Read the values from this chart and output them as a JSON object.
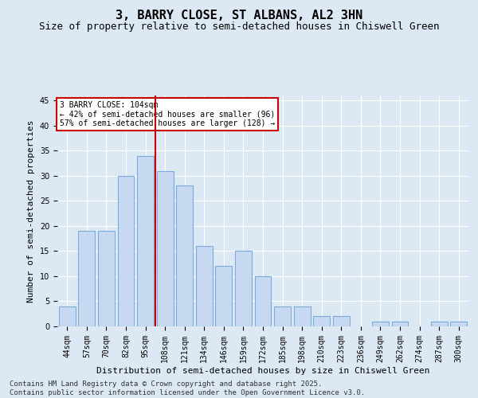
{
  "title": "3, BARRY CLOSE, ST ALBANS, AL2 3HN",
  "subtitle": "Size of property relative to semi-detached houses in Chiswell Green",
  "xlabel": "Distribution of semi-detached houses by size in Chiswell Green",
  "ylabel": "Number of semi-detached properties",
  "categories": [
    "44sqm",
    "57sqm",
    "70sqm",
    "82sqm",
    "95sqm",
    "108sqm",
    "121sqm",
    "134sqm",
    "146sqm",
    "159sqm",
    "172sqm",
    "185sqm",
    "198sqm",
    "210sqm",
    "223sqm",
    "236sqm",
    "249sqm",
    "262sqm",
    "274sqm",
    "287sqm",
    "300sqm"
  ],
  "values": [
    4,
    19,
    19,
    30,
    34,
    31,
    28,
    16,
    12,
    15,
    10,
    4,
    4,
    2,
    2,
    0,
    1,
    1,
    0,
    1,
    1
  ],
  "bar_color": "#c6d9f0",
  "bar_edge_color": "#7aaddb",
  "reference_line_x": 4.5,
  "reference_label": "3 BARRY CLOSE: 104sqm",
  "annotation_smaller": "← 42% of semi-detached houses are smaller (96)",
  "annotation_larger": "57% of semi-detached houses are larger (128) →",
  "annotation_box_color": "#ffffff",
  "annotation_box_edge_color": "#cc0000",
  "ref_line_color": "#cc0000",
  "ylim": [
    0,
    46
  ],
  "yticks": [
    0,
    5,
    10,
    15,
    20,
    25,
    30,
    35,
    40,
    45
  ],
  "background_color": "#dce9f5",
  "plot_bg_color": "#dce9f5",
  "grid_color": "#ffffff",
  "footer1": "Contains HM Land Registry data © Crown copyright and database right 2025.",
  "footer2": "Contains public sector information licensed under the Open Government Licence v3.0.",
  "title_fontsize": 11,
  "subtitle_fontsize": 9,
  "axis_label_fontsize": 8,
  "tick_fontsize": 7,
  "footer_fontsize": 6.5
}
